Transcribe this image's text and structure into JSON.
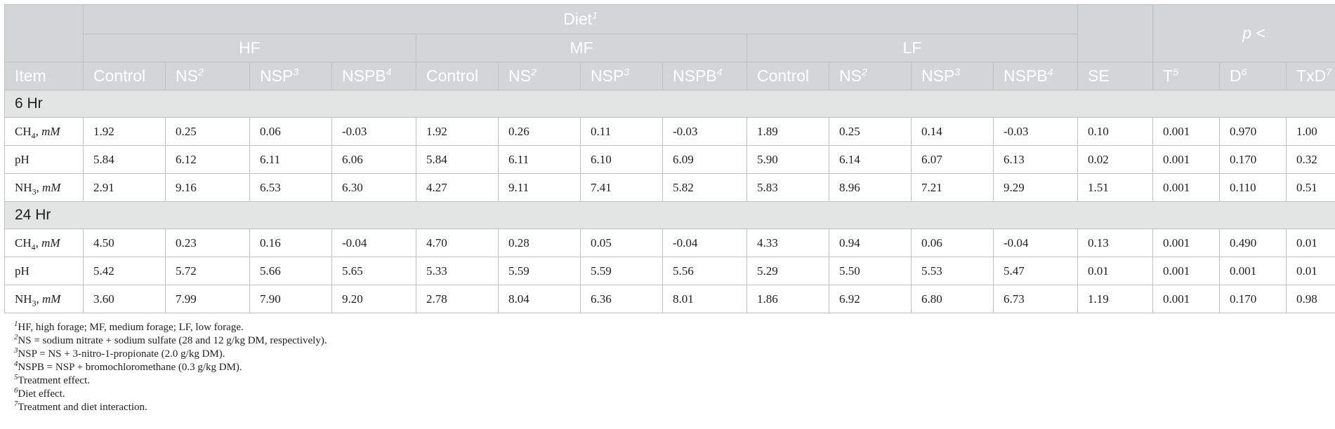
{
  "header": {
    "diet_label": "Diet",
    "diet_sup": "1",
    "groups": [
      "HF",
      "MF",
      "LF"
    ],
    "p_label": "p <",
    "item_label": "Item",
    "treatments": [
      {
        "label": "Control",
        "sup": ""
      },
      {
        "label": "NS",
        "sup": "2"
      },
      {
        "label": "NSP",
        "sup": "3"
      },
      {
        "label": "NSPB",
        "sup": "4"
      }
    ],
    "se_label": "SE",
    "effects": [
      {
        "label": "T",
        "sup": "5"
      },
      {
        "label": "D",
        "sup": "6"
      },
      {
        "label": "TxD",
        "sup": "7"
      }
    ]
  },
  "sections": [
    {
      "title": "6 Hr",
      "rows": [
        {
          "item_base": "CH",
          "item_sub": "4",
          "item_unit": "mM",
          "values": [
            "1.92",
            "0.25",
            "0.06",
            "-0.03",
            "1.92",
            "0.26",
            "0.11",
            "-0.03",
            "1.89",
            "0.25",
            "0.14",
            "-0.03"
          ],
          "se": "0.10",
          "p": [
            "0.001",
            "0.970",
            "1.00"
          ]
        },
        {
          "item_base": "pH",
          "item_sub": "",
          "item_unit": "",
          "values": [
            "5.84",
            "6.12",
            "6.11",
            "6.06",
            "5.84",
            "6.11",
            "6.10",
            "6.09",
            "5.90",
            "6.14",
            "6.07",
            "6.13"
          ],
          "se": "0.02",
          "p": [
            "0.001",
            "0.170",
            "0.32"
          ]
        },
        {
          "item_base": "NH",
          "item_sub": "3",
          "item_unit": "mM",
          "values": [
            "2.91",
            "9.16",
            "6.53",
            "6.30",
            "4.27",
            "9.11",
            "7.41",
            "5.82",
            "5.83",
            "8.96",
            "7.21",
            "9.29"
          ],
          "se": "1.51",
          "p": [
            "0.001",
            "0.110",
            "0.51"
          ]
        }
      ]
    },
    {
      "title": "24 Hr",
      "rows": [
        {
          "item_base": "CH",
          "item_sub": "4",
          "item_unit": "mM",
          "values": [
            "4.50",
            "0.23",
            "0.16",
            "-0.04",
            "4.70",
            "0.28",
            "0.05",
            "-0.04",
            "4.33",
            "0.94",
            "0.06",
            "-0.04"
          ],
          "se": "0.13",
          "p": [
            "0.001",
            "0.490",
            "0.01"
          ]
        },
        {
          "item_base": "pH",
          "item_sub": "",
          "item_unit": "",
          "values": [
            "5.42",
            "5.72",
            "5.66",
            "5.65",
            "5.33",
            "5.59",
            "5.59",
            "5.56",
            "5.29",
            "5.50",
            "5.53",
            "5.47"
          ],
          "se": "0.01",
          "p": [
            "0.001",
            "0.001",
            "0.01"
          ]
        },
        {
          "item_base": "NH",
          "item_sub": "3",
          "item_unit": "mM",
          "values": [
            "3.60",
            "7.99",
            "7.90",
            "9.20",
            "2.78",
            "8.04",
            "6.36",
            "8.01",
            "1.86",
            "6.92",
            "6.80",
            "6.73"
          ],
          "se": "1.19",
          "p": [
            "0.001",
            "0.170",
            "0.98"
          ]
        }
      ]
    }
  ],
  "footnotes": [
    {
      "num": "1",
      "text": "HF, high forage; MF, medium forage; LF, low forage."
    },
    {
      "num": "2",
      "text": "NS = sodium nitrate + sodium sulfate (28 and 12 g/kg DM, respectively)."
    },
    {
      "num": "3",
      "text": "NSP = NS + 3-nitro-1-propionate (2.0 g/kg DM)."
    },
    {
      "num": "4",
      "text": "NSPB = NSP + bromochloromethane (0.3 g/kg DM)."
    },
    {
      "num": "5",
      "text": "Treatment effect."
    },
    {
      "num": "6",
      "text": "Diet effect."
    },
    {
      "num": "7",
      "text": "Treatment and diet interaction."
    }
  ]
}
